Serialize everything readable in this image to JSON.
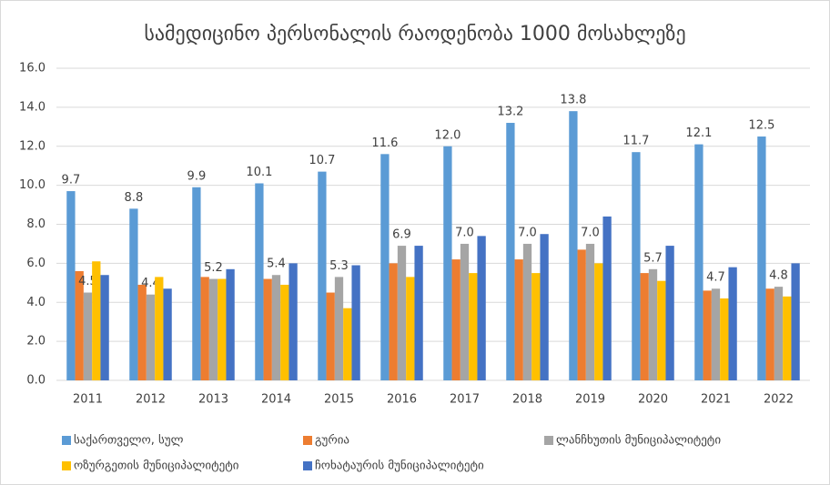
{
  "chart_data": {
    "type": "bar",
    "title": "სამედიცინო პერსონალის რაოდენობა 1000 მოსახლეზე",
    "categories": [
      "2011",
      "2012",
      "2013",
      "2014",
      "2015",
      "2016",
      "2017",
      "2018",
      "2019",
      "2020",
      "2021",
      "2022"
    ],
    "series": [
      {
        "name": "საქართველო, სულ",
        "color": "#5b9bd5",
        "values": [
          9.7,
          8.8,
          9.9,
          10.1,
          10.7,
          11.6,
          12.0,
          13.2,
          13.8,
          11.7,
          12.1,
          12.5
        ],
        "value_labels": [
          "9.7",
          "8.8",
          "9.9",
          "10.1",
          "10.7",
          "11.6",
          "12.0",
          "13.2",
          "13.8",
          "11.7",
          "12.1",
          "12.5"
        ]
      },
      {
        "name": "გურია",
        "color": "#ed7d31",
        "values": [
          5.6,
          4.9,
          5.3,
          5.2,
          4.5,
          6.0,
          6.2,
          6.2,
          6.7,
          5.5,
          4.6,
          4.7
        ]
      },
      {
        "name": "ლანჩხუთის მუნიციპალიტეტი",
        "color": "#a5a5a5",
        "values": [
          4.5,
          4.4,
          5.2,
          5.4,
          5.3,
          6.9,
          7.0,
          7.0,
          7.0,
          5.7,
          4.7,
          4.8
        ],
        "value_labels": [
          "4.5",
          "4.4",
          "5.2",
          "5.4",
          "5.3",
          "6.9",
          "7.0",
          "7.0",
          "7.0",
          "5.7",
          "4.7",
          "4.8"
        ]
      },
      {
        "name": "ოზურგეთის მუნიციპალიტეტი",
        "color": "#ffc000",
        "values": [
          6.1,
          5.3,
          5.2,
          4.9,
          3.7,
          5.3,
          5.5,
          5.5,
          6.0,
          5.1,
          4.2,
          4.3
        ]
      },
      {
        "name": "ჩოხატაურის მუნიციპალიტეტი",
        "color": "#4472c4",
        "values": [
          5.4,
          4.7,
          5.7,
          6.0,
          5.9,
          6.9,
          7.4,
          7.5,
          8.4,
          6.9,
          5.8,
          6.0
        ]
      }
    ],
    "ylim": [
      0,
      16
    ],
    "yticks": [
      {
        "value": 0,
        "label": "0.0"
      },
      {
        "value": 2,
        "label": "2.0"
      },
      {
        "value": 4,
        "label": "4.0"
      },
      {
        "value": 6,
        "label": "6.0"
      },
      {
        "value": 8,
        "label": "8.0"
      },
      {
        "value": 10,
        "label": "10.0"
      },
      {
        "value": 12,
        "label": "12.0"
      },
      {
        "value": 14,
        "label": "14.0"
      },
      {
        "value": 16,
        "label": "16.0"
      }
    ],
    "grid": true,
    "legend": "bottom"
  }
}
